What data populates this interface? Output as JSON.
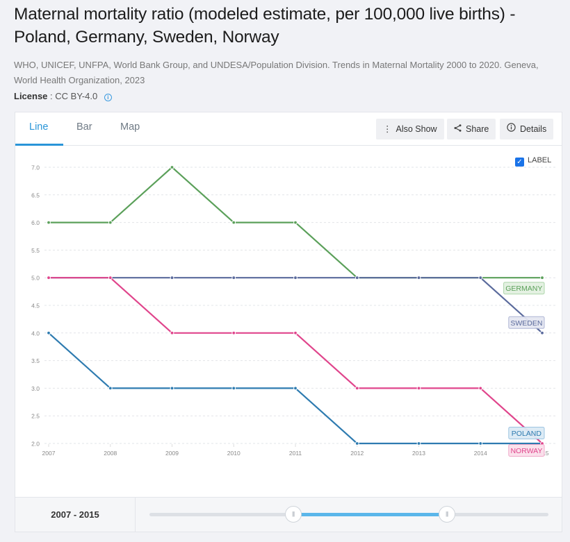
{
  "header": {
    "title": "Maternal mortality ratio (modeled estimate, per 100,000 live births) - Poland, Germany, Sweden, Norway",
    "source": "WHO, UNICEF, UNFPA, World Bank Group, and UNDESA/Population Division. Trends in Maternal Mortality 2000 to 2020. Geneva, World Health Organization, 2023",
    "license_label": "License",
    "license_value": ": CC BY-4.0",
    "info_icon": "info-icon"
  },
  "tabs": [
    {
      "label": "Line",
      "active": true
    },
    {
      "label": "Bar",
      "active": false
    },
    {
      "label": "Map",
      "active": false
    }
  ],
  "toolbar": {
    "also_show": {
      "label": "Also Show",
      "icon": "vertical-dots-icon"
    },
    "share": {
      "label": "Share",
      "icon": "share-icon"
    },
    "details": {
      "label": "Details",
      "icon": "info-circle-icon"
    }
  },
  "label_toggle": {
    "label": "LABEL",
    "checked": true
  },
  "range": {
    "label": "2007 - 2015",
    "selected_start_fraction": 0.36,
    "selected_end_fraction": 0.745
  },
  "chart_data": {
    "type": "line",
    "title": "Maternal mortality ratio (modeled estimate, per 100,000 live births)",
    "xlabel": "",
    "ylabel": "",
    "x": [
      2007,
      2008,
      2009,
      2010,
      2011,
      2012,
      2013,
      2014,
      2015
    ],
    "x_tick_labels": [
      "2007",
      "2008",
      "2009",
      "2010",
      "2011",
      "2012",
      "2013",
      "2014",
      "2015"
    ],
    "ylim": [
      2.0,
      7.0
    ],
    "y_ticks": [
      "2.0",
      "2.5",
      "3.0",
      "3.5",
      "4.0",
      "4.5",
      "5.0",
      "5.5",
      "6.0",
      "6.5",
      "7.0"
    ],
    "grid": true,
    "series": [
      {
        "name": "GERMANY",
        "color": "#5ba05a",
        "label_bg": "#e3f1e1",
        "label_border": "#a9d3a5",
        "values": [
          6,
          6,
          7,
          6,
          6,
          5,
          5,
          5,
          5
        ]
      },
      {
        "name": "SWEDEN",
        "color": "#5a6a9c",
        "label_bg": "#e5e7f2",
        "label_border": "#aab2d2",
        "values": [
          5,
          5,
          5,
          5,
          5,
          5,
          5,
          5,
          4
        ]
      },
      {
        "name": "POLAND",
        "color": "#2e7bb0",
        "label_bg": "#dceaf5",
        "label_border": "#97c1e0",
        "values": [
          4,
          3,
          3,
          3,
          3,
          2,
          2,
          2,
          2
        ]
      },
      {
        "name": "NORWAY",
        "color": "#e0458c",
        "label_bg": "#fbe0ec",
        "label_border": "#f0a3c6",
        "values": [
          5,
          5,
          4,
          4,
          4,
          3,
          3,
          3,
          2
        ]
      }
    ]
  }
}
